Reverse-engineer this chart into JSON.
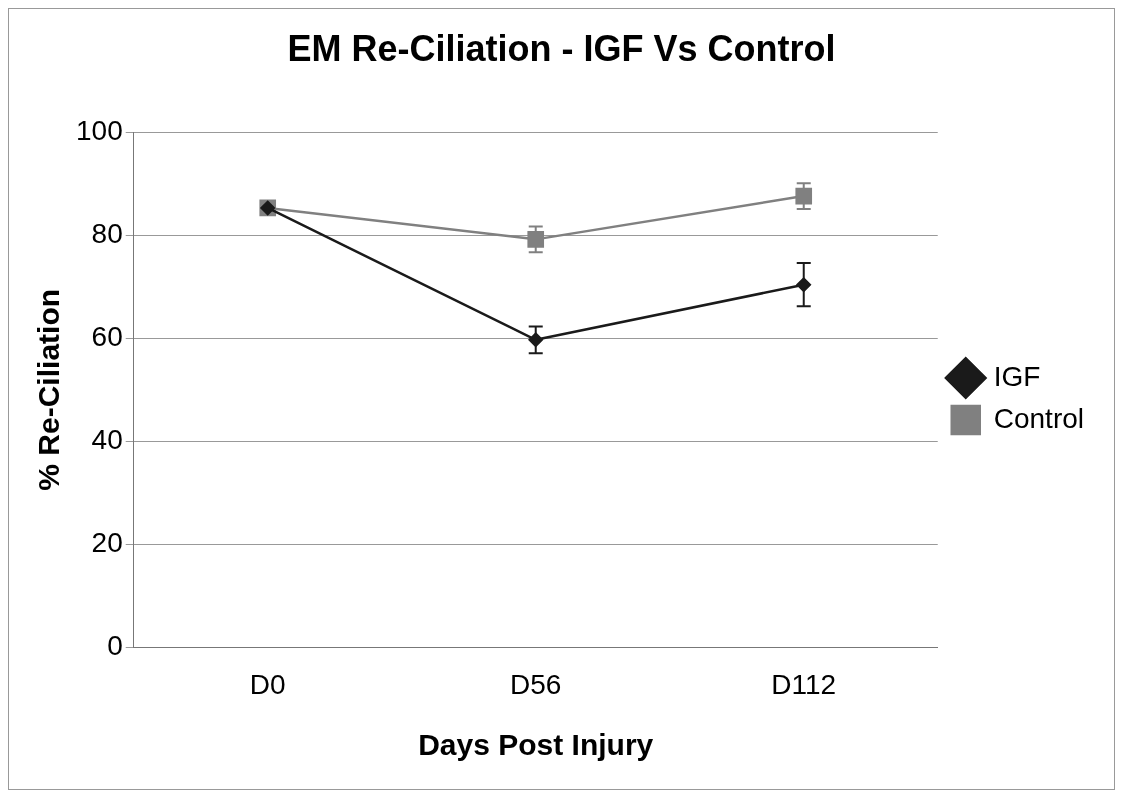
{
  "chart_data": {
    "type": "line",
    "title": "EM Re-Ciliation - IGF Vs Control",
    "xlabel": "Days Post Injury",
    "ylabel": "% Re-Ciliation",
    "categories": [
      "D0",
      "D56",
      "D112"
    ],
    "series": [
      {
        "name": "IGF",
        "color": "#1a1a1a",
        "marker": "diamond",
        "values": [
          85.3,
          59.7,
          70.4
        ],
        "errors": [
          0.8,
          2.6,
          4.2
        ]
      },
      {
        "name": "Control",
        "color": "#808080",
        "marker": "square",
        "values": [
          85.3,
          79.2,
          87.6
        ],
        "errors": [
          0.8,
          2.5,
          2.5
        ]
      }
    ],
    "ylim": [
      0,
      100
    ],
    "yticks": [
      0,
      20,
      40,
      60,
      80,
      100
    ],
    "grid": "y",
    "legend": "right",
    "line_style": "solid"
  }
}
